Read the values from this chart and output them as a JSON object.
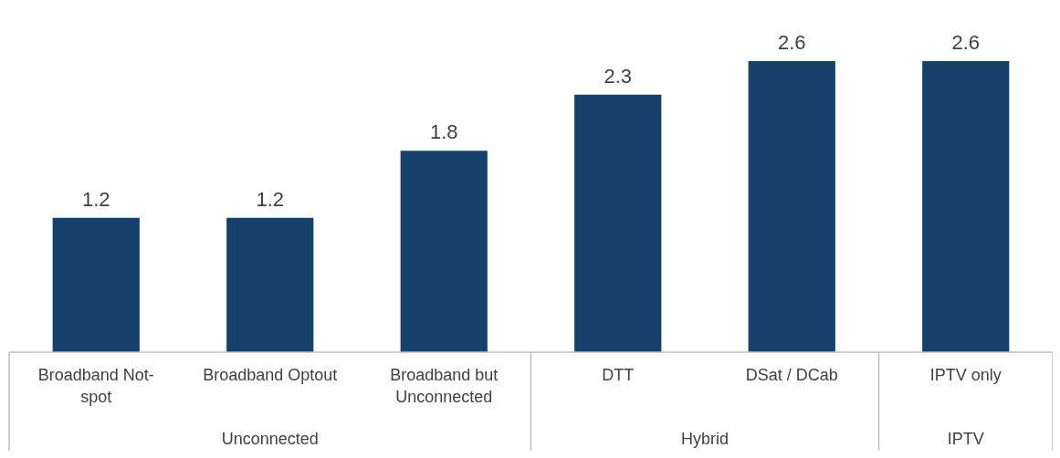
{
  "chart_data": {
    "type": "bar",
    "categories": [
      "Broadband Not-spot",
      "Broadband Optout",
      "Broadband but Unconnected",
      "DTT",
      "DSat / DCab",
      "IPTV only"
    ],
    "values": [
      1.2,
      1.2,
      1.8,
      2.3,
      2.6,
      2.6
    ],
    "color": "#15416b",
    "data_labels": true,
    "legend": false,
    "tick_labels": "x",
    "annotations": [
      "Unconnected",
      "Hybrid",
      "IPTV"
    ]
  }
}
